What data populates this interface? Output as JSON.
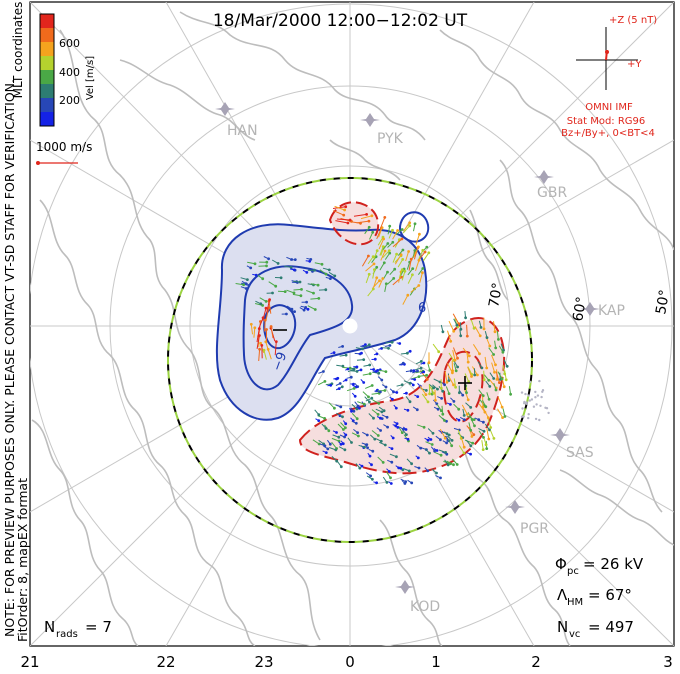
{
  "title": "18/Mar/2000 12:00−12:02 UT",
  "side_note": "NOTE: FOR PREVIEW PURPOSES ONLY. PLEASE CONTACT VT-SD STAFF FOR VERIFICATION.",
  "side_fit": "FitOrder: 8, mapEX format",
  "mlt_label": "MLT coordinates",
  "colorbar": {
    "label": "Vel [m/s]",
    "ticks": [
      "600",
      "400",
      "200"
    ],
    "colors": [
      "#e2261d",
      "#f06a1c",
      "#f5a31e",
      "#b5d22e",
      "#4aa846",
      "#2d7d72",
      "#2747b7",
      "#1422e6"
    ]
  },
  "ref_vector": {
    "label": "1000 m/s"
  },
  "imf": {
    "z_label": "+Z (5 nT)",
    "y_label": "+Y",
    "source": "OMNI IMF",
    "model": "Stat Mod: RG96",
    "condition": "Bz+/By+, 0<BT<4"
  },
  "stations": [
    {
      "code": "HAN"
    },
    {
      "code": "PYK"
    },
    {
      "code": "GBR"
    },
    {
      "code": "KAP"
    },
    {
      "code": "SAS"
    },
    {
      "code": "PGR"
    },
    {
      "code": "KOD"
    }
  ],
  "lat_labels": [
    "70°",
    "60°",
    "50°"
  ],
  "contours": {
    "neg_label": "−9",
    "pos_label": "6"
  },
  "stats": {
    "phi_pc": {
      "symbol": "Φ",
      "sub": "pc",
      "value": "= 26 kV"
    },
    "lambda_hm": {
      "symbol": "Λ",
      "sub": "HM",
      "value": "= 67°"
    },
    "n_vc": {
      "symbol": "N",
      "sub": "vc",
      "value": "= 497"
    },
    "n_rads": {
      "symbol": "N",
      "sub": "rads",
      "value": "= 7"
    }
  },
  "mlt_ticks": [
    "21",
    "22",
    "23",
    "0",
    "1",
    "2",
    "3"
  ],
  "colors": {
    "coast": "#bdbdbd",
    "grid": "#c8c8c8",
    "neg_contour": "#1f3bb0",
    "pos_contour": "#d0221e",
    "neg_fill": "#dcdff0",
    "pos_fill": "#f6dede",
    "boundary_dash": "#9bd341",
    "annotation": "#e0261c",
    "station": "#a7a3b5"
  }
}
